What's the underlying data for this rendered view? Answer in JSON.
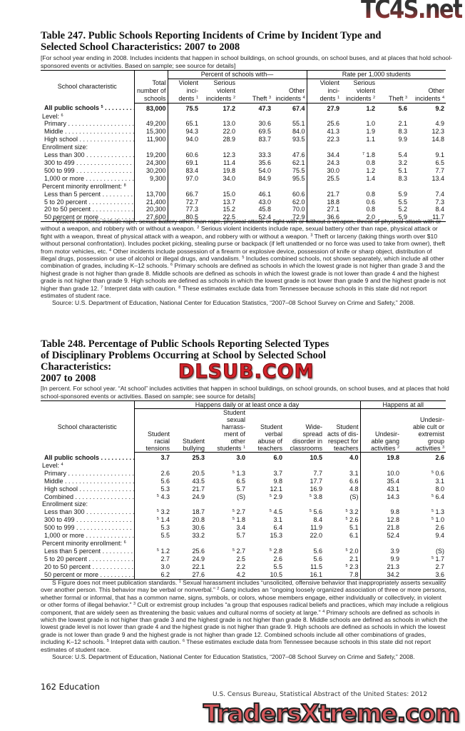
{
  "table247": {
    "title_line1": "Table 247. Public Schools Reporting Incidents of Crime by Incident Type and",
    "title_line2": "Selected School Characteristics: 2007 to 2008",
    "headnote": "[For school year ending in 2008. Includes incidents that happen in school buildings, on school grounds, on school buses, and at places that hold school-sponsored events or activities. Based on sample; see source for details]",
    "stub_header": "School characteristic",
    "groups": [
      {
        "label": "",
        "span": 1
      },
      {
        "label": "Percent of schools with—",
        "span": 4
      },
      {
        "label": "Rate per 1,000 students",
        "span": 4
      }
    ],
    "columns": [
      {
        "lines": [
          "Total",
          "number of",
          "schools"
        ],
        "sup": ""
      },
      {
        "lines": [
          "Violent",
          "inci-",
          "dents"
        ],
        "sup": "1"
      },
      {
        "lines": [
          "Serious",
          "violent",
          "incidents"
        ],
        "sup": "2"
      },
      {
        "lines": [
          "Theft"
        ],
        "sup": "3"
      },
      {
        "lines": [
          "Other",
          "incidents"
        ],
        "sup": "4"
      },
      {
        "lines": [
          "Violent",
          "inci-",
          "dents"
        ],
        "sup": "1"
      },
      {
        "lines": [
          "Serious",
          "violent",
          "incidents"
        ],
        "sup": "2"
      },
      {
        "lines": [
          "Theft"
        ],
        "sup": "3"
      },
      {
        "lines": [
          "Other",
          "incidents"
        ],
        "sup": "4"
      }
    ],
    "rows": [
      {
        "label": "All public schools",
        "sup": "5",
        "bold": true,
        "values": [
          "83,000",
          "75.5",
          "17.2",
          "47.3",
          "67.4",
          "27.9",
          "1.2",
          "5.6",
          "9.2"
        ]
      },
      {
        "label": "Level:",
        "sup": "6",
        "section": true
      },
      {
        "label": "Primary",
        "values": [
          "49,200",
          "65.1",
          "13.0",
          "30.6",
          "55.1",
          "25.6",
          "1.0",
          "2.1",
          "4.9"
        ]
      },
      {
        "label": "Middle",
        "values": [
          "15,300",
          "94.3",
          "22.0",
          "69.5",
          "84.0",
          "41.3",
          "1.9",
          "8.3",
          "12.3"
        ]
      },
      {
        "label": "High school",
        "values": [
          "11,900",
          "94.0",
          "28.9",
          "83.7",
          "93.5",
          "22.3",
          "1.1",
          "9.9",
          "14.8"
        ]
      },
      {
        "label": "Enrollment size:",
        "section": true
      },
      {
        "label": "Less than 300",
        "values": [
          "19,200",
          "60.6",
          "12.3",
          "33.3",
          "47.6",
          "34.4",
          [
            "7",
            "1.8"
          ],
          "5.4",
          "9.1"
        ]
      },
      {
        "label": "300 to 499",
        "values": [
          "24,300",
          "69.1",
          "11.4",
          "35.6",
          "62.1",
          "24.3",
          "0.8",
          "3.2",
          "6.5"
        ]
      },
      {
        "label": "500 to 999",
        "values": [
          "30,200",
          "83.4",
          "19.8",
          "54.0",
          "75.5",
          "30.0",
          "1.2",
          "5.1",
          "7.7"
        ]
      },
      {
        "label": "1,000 or more",
        "values": [
          "9,300",
          "97.0",
          "34.0",
          "84.9",
          "95.5",
          "25.5",
          "1.4",
          "8.3",
          "13.4"
        ]
      },
      {
        "label": "Percent minority enrollment:",
        "sup": "8",
        "section": true
      },
      {
        "label": "Less than 5 percent",
        "values": [
          "13,700",
          "66.7",
          "15.0",
          "46.1",
          "60.6",
          "21.7",
          "0.8",
          "5.9",
          "7.4"
        ]
      },
      {
        "label": "5 to 20 percent",
        "values": [
          "21,400",
          "72.7",
          "13.7",
          "43.0",
          "62.0",
          "18.8",
          "0.6",
          "5.5",
          "7.3"
        ]
      },
      {
        "label": "20 to 50 percent",
        "values": [
          "20,300",
          "77.3",
          "15.2",
          "45.8",
          "70.0",
          "27.1",
          "0.8",
          "5.2",
          "8.4"
        ]
      },
      {
        "label": "50 percent or more",
        "values": [
          "27,600",
          "80.5",
          "22.5",
          "52.4",
          "72.9",
          "36.6",
          "2.0",
          "5.9",
          "11.7"
        ]
      }
    ],
    "footnotes": [
      {
        "sup": "1",
        "text": "Violent incidents include rape, sexual battery other than rape, physical attack or fight with or without a weapon, threat of physical attack with or without a weapon, and robbery with or without a weapon."
      },
      {
        "sup": "2",
        "text": "Serious violent incidents include rape, sexual battery other than rape, physical attack or fight with a weapon, threat of physical attack with a weapon, and robbery with or without a weapon."
      },
      {
        "sup": "3",
        "text": "Theft or larceny (taking things worth over $10 without personal confrontation). Includes pocket picking, stealing purse or backpack (if left unattended or no force was used to take from owner), theft from motor vehicles, etc."
      },
      {
        "sup": "4",
        "text": "Other incidents include possession of a firearm or explosive device, possession of knife or sharp object, distribution of illegal drugs, possession or use of alcohol or illegal drugs, and vandalism."
      },
      {
        "sup": "5",
        "text": "Includes combined schools, not shown separately, which include all other combination of grades, including K–12 schools."
      },
      {
        "sup": "6",
        "text": "Primary schools are defined as schools in which the lowest grade is not higher than grade 3 and the highest grade is not higher than grade 8. Middle schools are defined as schools in which the lowest grade is not lower than grade 4 and the highest grade is not higher than grade 9. High schools are defined as schools in which the lowest grade is not lower than grade 9 and the highest grade is not higher than grade 12."
      },
      {
        "sup": "7",
        "text": "Interpret data with caution."
      },
      {
        "sup": "8",
        "text": "These estimates exclude data from Tennessee because schools in this state did not report estimates of student race."
      }
    ],
    "source": "Source: U.S. Department of Education, National Center for Education Statistics, “2007–08 School Survey on Crime and Safety,” 2008."
  },
  "table248": {
    "title_line1": "Table 248. Percentage of Public Schools Reporting Selected Types",
    "title_line2": "of Disciplinary Problems Occurring at School by Selected School",
    "title_line3": "Characteristics:",
    "title_line4": "2007 to 2008",
    "headnote": "[In percent. For school year. “At school” includes activities that happen in school  buildings, on school grounds, on school buses, and at places that hold school-sponsored events or activities. Based on sample; see source for details]",
    "stub_header": "School characteristic",
    "groups": [
      {
        "label": "Happens daily or at least once a day",
        "span": 6
      },
      {
        "label": "Happens at all",
        "span": 2
      }
    ],
    "columns": [
      {
        "lines": [
          "Student",
          "racial",
          "tensions"
        ],
        "sup": ""
      },
      {
        "lines": [
          "Student",
          "bullying"
        ],
        "sup": ""
      },
      {
        "lines": [
          "Student",
          "sexual",
          "harrass-",
          "ment of",
          "other",
          "students"
        ],
        "sup": "1"
      },
      {
        "lines": [
          "Student",
          "verbal",
          "abuse of",
          "teachers"
        ],
        "sup": ""
      },
      {
        "lines": [
          "Wide-",
          "spread",
          "disorder in",
          "classrooms"
        ],
        "sup": ""
      },
      {
        "lines": [
          "Student",
          "acts of dis-",
          "respect for",
          "teachers"
        ],
        "sup": ""
      },
      {
        "lines": [
          "Undesir-",
          "able gang",
          "activities"
        ],
        "sup": "2"
      },
      {
        "lines": [
          "Undesir-",
          "able cult or",
          "extremist",
          "group",
          "activities"
        ],
        "sup": "3"
      }
    ],
    "rows": [
      {
        "label": "All public schools",
        "sup": "",
        "bold": true,
        "values": [
          "3.7",
          "25.3",
          "3.0",
          "6.0",
          "10.5",
          "4.0",
          "19.8",
          "2.6"
        ]
      },
      {
        "label": "Level:",
        "sup": "4",
        "section": true
      },
      {
        "label": "Primary",
        "values": [
          "2.6",
          "20.5",
          [
            "5",
            "1.3"
          ],
          "3.7",
          "7.7",
          "3.1",
          "10.0",
          [
            "5",
            "0.6"
          ]
        ]
      },
      {
        "label": "Middle",
        "values": [
          "5.6",
          "43.5",
          "6.5",
          "9.8",
          "17.7",
          "6.6",
          "35.4",
          "3.1"
        ]
      },
      {
        "label": "High school",
        "values": [
          "5.3",
          "21.7",
          "5.7",
          "12.1",
          "16.9",
          "4.8",
          "43.1",
          "8.0"
        ]
      },
      {
        "label": "Combined",
        "values": [
          [
            "5",
            "4.3"
          ],
          "24.9",
          "(S)",
          [
            "5",
            "2.9"
          ],
          [
            "5",
            "3.8"
          ],
          "(S)",
          "14.3",
          [
            "5",
            "6.4"
          ]
        ]
      },
      {
        "label": "Enrollment size:",
        "section": true
      },
      {
        "label": "Less than 300",
        "values": [
          [
            "5",
            "3.2"
          ],
          "18.7",
          [
            "5",
            "2.7"
          ],
          [
            "5",
            "4.5"
          ],
          [
            "5",
            "5.6"
          ],
          [
            "5",
            "3.2"
          ],
          "9.8",
          [
            "5",
            "1.3"
          ]
        ]
      },
      {
        "label": "300 to 499",
        "values": [
          [
            "5",
            "1.4"
          ],
          "20.8",
          [
            "5",
            "1.8"
          ],
          "3.1",
          "8.4",
          [
            "5",
            "2.6"
          ],
          "12.8",
          [
            "5",
            "1.0"
          ]
        ]
      },
      {
        "label": "500 to 999",
        "values": [
          "5.3",
          "30.6",
          "3.4",
          "6.4",
          "11.9",
          "5.1",
          "21.8",
          "2.6"
        ]
      },
      {
        "label": "1,000 or more",
        "values": [
          "5.5",
          "33.2",
          "5.7",
          "15.3",
          "22.0",
          "6.1",
          "52.4",
          "9.4"
        ]
      },
      {
        "label": "Percent minority enrollment:",
        "sup": "6",
        "section": true
      },
      {
        "label": "Less than 5 percent",
        "values": [
          [
            "5",
            "1.2"
          ],
          "25.6",
          [
            "5",
            "2.7"
          ],
          [
            "5",
            "2.8"
          ],
          "5.6",
          [
            "5",
            "2.0"
          ],
          "3.9",
          "(S)"
        ]
      },
      {
        "label": "5 to 20 percent",
        "values": [
          "2.7",
          "24.9",
          "2.5",
          "2.6",
          "5.6",
          "2.1",
          "9.9",
          [
            "5",
            "1.7"
          ]
        ]
      },
      {
        "label": "20 to 50 percent",
        "values": [
          "3.0",
          "22.1",
          "2.2",
          "5.5",
          "11.5",
          [
            "5",
            "2.3"
          ],
          "21.3",
          "2.7"
        ]
      },
      {
        "label": "50 percent or more",
        "values": [
          "6.2",
          "27.6",
          "4.2",
          "10.5",
          "16.1",
          "7.8",
          "34.2",
          "3.6"
        ]
      }
    ],
    "footnotes": [
      {
        "sup": "",
        "text": "S Figure does not meet publication standards."
      },
      {
        "sup": "1",
        "text": "Sexual harassment includes “unsolicited, offensive behavior that inappropriately asserts sexuality over another person. This behavior may be verbal or nonverbal.”"
      },
      {
        "sup": "2",
        "text": "Gang includes an “ongoing loosely organized association of three or more persons, whether formal or informal, that has a common name, signs, symbols, or colors, whose members engage, either individually or collectively, in violent or other forms of illegal behavior.”"
      },
      {
        "sup": "3",
        "text": "Cult or extremist group includes “a group that espouses radical beliefs and practices, which may include a religious component, that are widely seen as threatening the basic values and cultural norms of society at large.”"
      },
      {
        "sup": "4",
        "text": "Primary schools are defined as schools in which the lowest grade is not higher than grade 3 and the highest grade is not higher than grade 8. Middle schools are defined as schools in which the lowest grade level is not lower than grade 4 and the highest grade is not higher than grade 9. High schools are defined as schools in which the lowest grade is not lower than grade 9 and the highest grade is not higher than grade 12. Combined schools include all other combinations of grades, including K–12 schools."
      },
      {
        "sup": "5",
        "text": "Intepret data with caution."
      },
      {
        "sup": "6",
        "text": "These estimates exclude data from Tennessee because schools in this state did not report estimates of student race."
      }
    ],
    "source": "Source: U.S. Department of Education, National Center for Education Statistics, “2007–08 School Survey on Crime and Safety,” 2008."
  },
  "footer": {
    "page_label": "162  Education",
    "publication": "U.S. Census Bureau, Statistical Abstract of the United States: 2012"
  },
  "watermarks": [
    "TC4S.net",
    "DLSUB.COM",
    "TradersXtreme.com"
  ]
}
